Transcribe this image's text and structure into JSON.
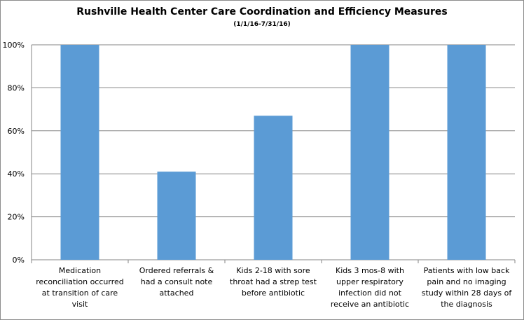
{
  "chart_data": {
    "type": "bar",
    "title": "Rushville Health Center Care Coordination and Efficiency  Measures",
    "subtitle": "(1/1/16-7/31/16)",
    "categories": [
      [
        "Medication",
        "reconciliation occurred",
        "at transition of care",
        "visit"
      ],
      [
        "Ordered referrals &",
        "had a consult note",
        "attached"
      ],
      [
        "Kids 2-18 with sore",
        "throat had a strep test",
        "before antibiotic"
      ],
      [
        "Kids 3 mos-8 with",
        "upper respiratory",
        "infection did not",
        "receive an antibiotic"
      ],
      [
        "Patients with low back",
        "pain and no imaging",
        "study within 28 days of",
        "the diagnosis"
      ]
    ],
    "values": [
      1.0,
      0.41,
      0.67,
      1.0,
      1.0
    ],
    "y_ticks": [
      "0%",
      "20%",
      "40%",
      "60%",
      "80%",
      "100%"
    ],
    "ylim": [
      0,
      1
    ],
    "grid": true,
    "legend": "none",
    "bar_color": "#5b9bd5",
    "grid_color": "#868686"
  }
}
